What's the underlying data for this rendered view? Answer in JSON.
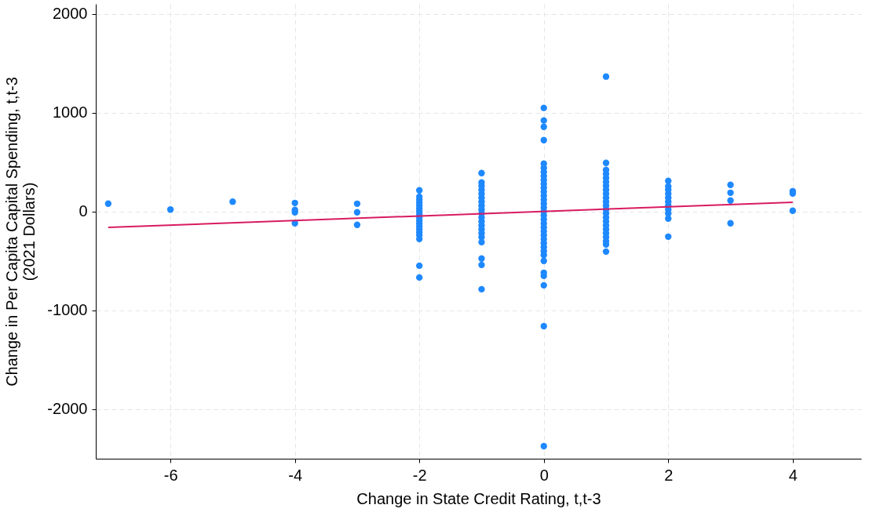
{
  "chart_data": {
    "type": "scatter",
    "xlabel": "Change in State Credit Rating, t,t-3",
    "ylabel": "Change in Per Capita Capital Spending, t,t-3\n(2021 Dollars)",
    "xlim": [
      -7.2,
      5.1
    ],
    "ylim": [
      -2500,
      2100
    ],
    "xticks": [
      -6,
      -4,
      -2,
      0,
      2,
      4
    ],
    "yticks": [
      -2000,
      -1000,
      0,
      1000,
      2000
    ],
    "grid": true,
    "series": [
      {
        "color": "#1e88ff",
        "marker": "circle",
        "x": [
          -7,
          -6,
          -5,
          -4,
          -4,
          -4,
          -4,
          -3,
          -3,
          -3,
          -2,
          -2,
          -2,
          -2,
          -2,
          -2,
          -2,
          -2,
          -2,
          -2,
          -2,
          -2,
          -2,
          -2,
          -2,
          -2,
          -2,
          -2,
          -1,
          -1,
          -1,
          -1,
          -1,
          -1,
          -1,
          -1,
          -1,
          -1,
          -1,
          -1,
          -1,
          -1,
          -1,
          -1,
          -1,
          -1,
          -1,
          -1,
          0,
          0,
          0,
          0,
          0,
          0,
          0,
          0,
          0,
          0,
          0,
          0,
          0,
          0,
          0,
          0,
          0,
          0,
          0,
          0,
          0,
          0,
          0,
          0,
          0,
          0,
          0,
          0,
          0,
          0,
          0,
          0,
          0,
          0,
          1,
          1,
          1,
          1,
          1,
          1,
          1,
          1,
          1,
          1,
          1,
          1,
          1,
          1,
          1,
          1,
          1,
          1,
          1,
          1,
          1,
          1,
          1,
          2,
          2,
          2,
          2,
          2,
          2,
          2,
          2,
          2,
          2,
          2,
          3,
          3,
          3,
          3,
          4,
          4,
          4
        ],
        "values": [
          80,
          20,
          100,
          87,
          16,
          -8,
          -119,
          79,
          -8,
          -135,
          214,
          150,
          120,
          90,
          60,
          30,
          0,
          -30,
          -60,
          -90,
          -120,
          -150,
          -180,
          -210,
          -240,
          -278,
          -548,
          -667,
          389,
          294,
          260,
          220,
          180,
          140,
          100,
          60,
          20,
          -20,
          -60,
          -100,
          -140,
          -180,
          -220,
          -260,
          -310,
          -476,
          -540,
          -786,
          1048,
          921,
          857,
          722,
          484,
          440,
          400,
          360,
          320,
          280,
          240,
          200,
          160,
          120,
          80,
          40,
          0,
          -40,
          -80,
          -120,
          -160,
          -200,
          -240,
          -280,
          -320,
          -360,
          -400,
          -440,
          -500,
          -619,
          -651,
          -746,
          -1159,
          -2373,
          1365,
          492,
          421,
          380,
          340,
          300,
          260,
          220,
          180,
          140,
          100,
          60,
          20,
          -20,
          -60,
          -100,
          -140,
          -180,
          -220,
          -260,
          -300,
          -333,
          -405,
          310,
          254,
          220,
          180,
          140,
          100,
          60,
          20,
          -20,
          -71,
          -254,
          270,
          190,
          111,
          -119,
          206,
          183,
          8
        ]
      },
      {
        "type": "line",
        "color": "#d81b60",
        "x": [
          -7,
          4
        ],
        "values": [
          -160,
          93
        ]
      }
    ]
  }
}
